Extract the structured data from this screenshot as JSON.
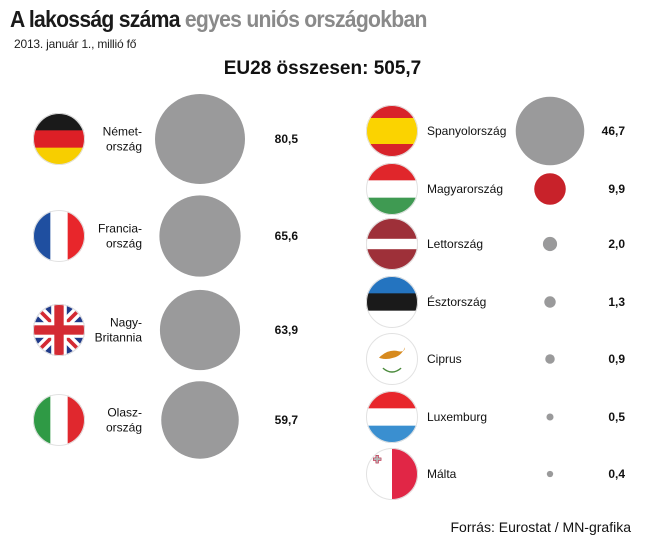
{
  "header": {
    "title_part1": "A ",
    "title_part2": "lakosság száma",
    "title_part3": " egyes uniós országokban",
    "subtitle": "2013. január 1., millió fő",
    "total": "EU28 összesen: 505,7"
  },
  "footer": {
    "source": "Forrás: Eurostat / MN-grafika"
  },
  "colors": {
    "bubble": "#9a9a9b",
    "highlight": "#c8222a"
  },
  "chart_data": {
    "type": "bubble",
    "title": "A lakosság száma egyes uniós országokban",
    "subtitle": "2013. január 1., millió fő",
    "unit": "millió fő",
    "total": 505.7,
    "countries": [
      {
        "name": "Német-ország",
        "label_lines": [
          "Német-",
          "ország"
        ],
        "value": 80.5,
        "value_label": "80,5",
        "flag": "germany"
      },
      {
        "name": "Francia-ország",
        "label_lines": [
          "Francia-",
          "ország"
        ],
        "value": 65.6,
        "value_label": "65,6",
        "flag": "france"
      },
      {
        "name": "Nagy-Britannia",
        "label_lines": [
          "Nagy-",
          "Britannia"
        ],
        "value": 63.9,
        "value_label": "63,9",
        "flag": "uk"
      },
      {
        "name": "Olasz-ország",
        "label_lines": [
          "Olasz-",
          "ország"
        ],
        "value": 59.7,
        "value_label": "59,7",
        "flag": "italy"
      },
      {
        "name": "Spanyolország",
        "label_lines": [
          "Spanyolország"
        ],
        "value": 46.7,
        "value_label": "46,7",
        "flag": "spain"
      },
      {
        "name": "Magyarország",
        "label_lines": [
          "Magyarország"
        ],
        "value": 9.9,
        "value_label": "9,9",
        "flag": "hungary",
        "highlight": true
      },
      {
        "name": "Lettország",
        "label_lines": [
          "Lettország"
        ],
        "value": 2.0,
        "value_label": "2,0",
        "flag": "latvia"
      },
      {
        "name": "Észtország",
        "label_lines": [
          "Észtország"
        ],
        "value": 1.3,
        "value_label": "1,3",
        "flag": "estonia"
      },
      {
        "name": "Ciprus",
        "label_lines": [
          "Ciprus"
        ],
        "value": 0.9,
        "value_label": "0,9",
        "flag": "cyprus"
      },
      {
        "name": "Luxemburg",
        "label_lines": [
          "Luxemburg"
        ],
        "value": 0.5,
        "value_label": "0,5",
        "flag": "luxembourg"
      },
      {
        "name": "Málta",
        "label_lines": [
          "Málta"
        ],
        "value": 0.4,
        "value_label": "0,4",
        "flag": "malta"
      }
    ]
  }
}
